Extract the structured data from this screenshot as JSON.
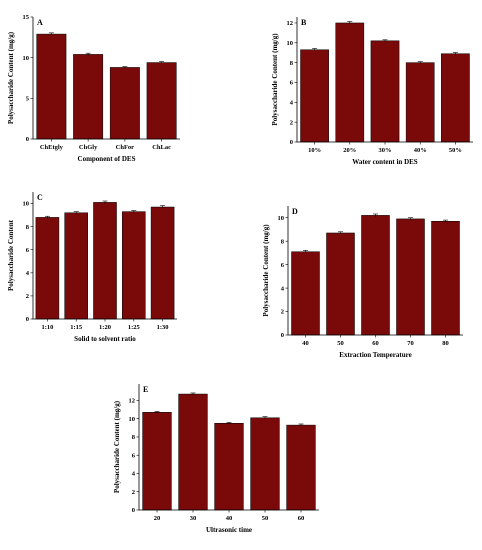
{
  "colors": {
    "bar": "#7a0a0a",
    "axis": "#000000"
  },
  "chart_data": [
    {
      "type": "bar",
      "panel": "A",
      "categories": [
        "ChEtgly",
        "ChGly",
        "ChFor",
        "ChLac"
      ],
      "values": [
        12.9,
        10.4,
        8.8,
        9.4
      ],
      "errors": [
        0.15,
        0.15,
        0.1,
        0.12
      ],
      "xlabel": "Component of DES",
      "ylabel": "Polysaccharide Content (mg/g)",
      "ylim": [
        0,
        15
      ],
      "yticks": [
        0,
        5,
        10,
        15
      ],
      "grid": false
    },
    {
      "type": "bar",
      "panel": "B",
      "categories": [
        "10%",
        "20%",
        "30%",
        "40%",
        "50%"
      ],
      "values": [
        9.3,
        12.0,
        10.2,
        8.0,
        8.9
      ],
      "errors": [
        0.12,
        0.15,
        0.1,
        0.1,
        0.12
      ],
      "xlabel": "Water content in DES",
      "ylabel": "Polysaccharide Content (mg/g)",
      "ylim": [
        0,
        12.6
      ],
      "yticks": [
        0,
        2,
        4,
        6,
        8,
        10,
        12
      ],
      "grid": false
    },
    {
      "type": "bar",
      "panel": "C",
      "categories": [
        "1:10",
        "1:15",
        "1:20",
        "1:25",
        "1:30"
      ],
      "values": [
        8.8,
        9.2,
        10.1,
        9.3,
        9.7
      ],
      "errors": [
        0.1,
        0.1,
        0.12,
        0.1,
        0.12
      ],
      "xlabel": "Solid to solvent ratio",
      "ylabel": "Polysaccharide Content",
      "ylim": [
        0,
        11
      ],
      "yticks": [
        0,
        2,
        4,
        6,
        8,
        10
      ],
      "grid": false
    },
    {
      "type": "bar",
      "panel": "D",
      "categories": [
        "40",
        "50",
        "60",
        "70",
        "80"
      ],
      "values": [
        7.1,
        8.7,
        10.2,
        9.9,
        9.7
      ],
      "errors": [
        0.12,
        0.1,
        0.12,
        0.1,
        0.1
      ],
      "xlabel": "Extraction Temperature",
      "ylabel": "Polysaccharide Content (mg/g)",
      "ylim": [
        0,
        11
      ],
      "yticks": [
        0,
        2,
        4,
        6,
        8,
        10
      ],
      "grid": false
    },
    {
      "type": "bar",
      "panel": "E",
      "categories": [
        "20",
        "30",
        "40",
        "50",
        "60"
      ],
      "values": [
        10.7,
        12.7,
        9.5,
        10.1,
        9.3
      ],
      "errors": [
        0.1,
        0.12,
        0.1,
        0.12,
        0.12
      ],
      "xlabel": "Ultrasonic time",
      "ylabel": "Polysaccharide Content (mg/g)",
      "ylim": [
        0,
        13.8
      ],
      "yticks": [
        0,
        2,
        4,
        6,
        8,
        10,
        12
      ],
      "grid": false
    }
  ]
}
